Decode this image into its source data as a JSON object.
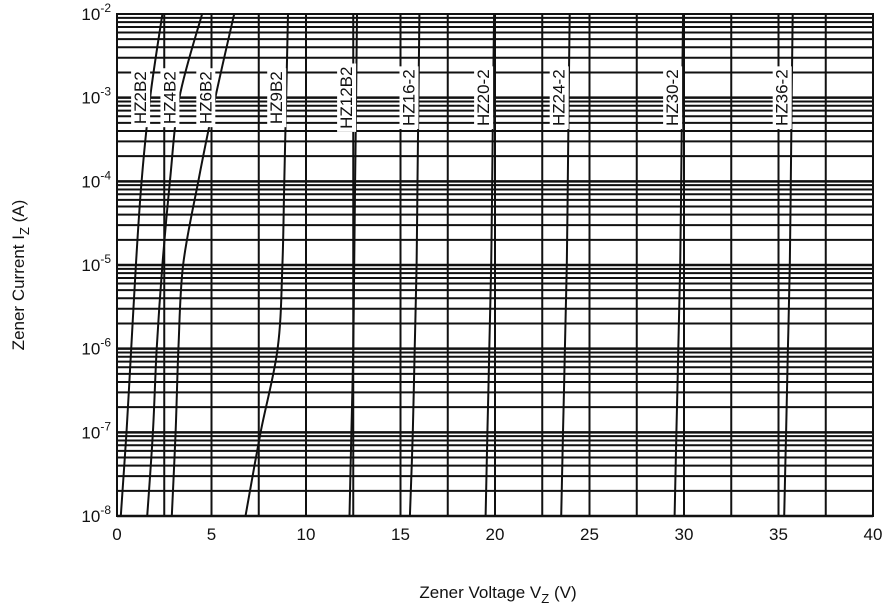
{
  "chart_data": {
    "type": "line",
    "title": "",
    "xlabel": "Zener Voltage V",
    "xlabel_sub": "Z",
    "xlabel_unit": "(V)",
    "ylabel": "Zener Current I",
    "ylabel_sub": "Z",
    "ylabel_unit": "(A)",
    "x_scale": "linear",
    "y_scale": "log",
    "xlim": [
      0,
      40
    ],
    "ylim": [
      1e-08,
      0.01
    ],
    "grid": true,
    "x_ticks": [
      0,
      5,
      10,
      15,
      20,
      25,
      30,
      35,
      40
    ],
    "x_tick_labels": [
      "0",
      "5",
      "10",
      "15",
      "20",
      "25",
      "30",
      "35",
      "40"
    ],
    "y_ticks": [
      1e-08,
      1e-07,
      1e-06,
      1e-05,
      0.0001,
      0.001,
      0.01
    ],
    "y_tick_labels": [
      {
        "base": "10",
        "exp": "-8"
      },
      {
        "base": "10",
        "exp": "-7"
      },
      {
        "base": "10",
        "exp": "-6"
      },
      {
        "base": "10",
        "exp": "-5"
      },
      {
        "base": "10",
        "exp": "-4"
      },
      {
        "base": "10",
        "exp": "-3"
      },
      {
        "base": "10",
        "exp": "-2"
      }
    ],
    "line_color": "#111111",
    "series": [
      {
        "name": "HZ2B2",
        "points": [
          [
            0.2,
            1e-08
          ],
          [
            0.5,
            1e-07
          ],
          [
            0.75,
            1e-06
          ],
          [
            1.0,
            1e-05
          ],
          [
            1.3,
            0.0001
          ],
          [
            1.75,
            0.001
          ],
          [
            2.4,
            0.01
          ]
        ]
      },
      {
        "name": "HZ4B2",
        "points": [
          [
            1.6,
            1e-08
          ],
          [
            1.9,
            1e-07
          ],
          [
            2.1,
            1e-06
          ],
          [
            2.4,
            1e-05
          ],
          [
            2.8,
            0.0001
          ],
          [
            3.3,
            0.001
          ],
          [
            4.5,
            0.01
          ]
        ]
      },
      {
        "name": "HZ6B2",
        "points": [
          [
            2.9,
            1e-08
          ],
          [
            3.1,
            1e-07
          ],
          [
            3.25,
            1e-06
          ],
          [
            3.5,
            1e-05
          ],
          [
            4.3,
            0.0001
          ],
          [
            5.2,
            0.001
          ],
          [
            6.2,
            0.01
          ]
        ]
      },
      {
        "name": "HZ9B2",
        "points": [
          [
            6.8,
            1e-08
          ],
          [
            7.6,
            1e-07
          ],
          [
            8.5,
            1e-06
          ],
          [
            8.75,
            1e-05
          ],
          [
            8.85,
            0.0001
          ],
          [
            8.95,
            0.001
          ],
          [
            9.05,
            0.01
          ]
        ]
      },
      {
        "name": "HZ12B2",
        "points": [
          [
            12.3,
            1e-08
          ],
          [
            12.4,
            1e-07
          ],
          [
            12.5,
            1e-06
          ],
          [
            12.55,
            1e-05
          ],
          [
            12.6,
            0.0001
          ],
          [
            12.65,
            0.001
          ],
          [
            12.7,
            0.01
          ]
        ]
      },
      {
        "name": "HZ16-2",
        "points": [
          [
            15.5,
            1e-08
          ],
          [
            15.65,
            1e-07
          ],
          [
            15.75,
            1e-06
          ],
          [
            15.85,
            1e-05
          ],
          [
            15.9,
            0.0001
          ],
          [
            15.95,
            0.001
          ],
          [
            16.0,
            0.01
          ]
        ]
      },
      {
        "name": "HZ20-2",
        "points": [
          [
            19.5,
            1e-08
          ],
          [
            19.6,
            1e-07
          ],
          [
            19.7,
            1e-06
          ],
          [
            19.8,
            1e-05
          ],
          [
            19.85,
            0.0001
          ],
          [
            19.9,
            0.001
          ],
          [
            19.95,
            0.01
          ]
        ]
      },
      {
        "name": "HZ24-2",
        "points": [
          [
            23.5,
            1e-08
          ],
          [
            23.6,
            1e-07
          ],
          [
            23.7,
            1e-06
          ],
          [
            23.8,
            1e-05
          ],
          [
            23.85,
            0.0001
          ],
          [
            23.9,
            0.001
          ],
          [
            23.95,
            0.01
          ]
        ]
      },
      {
        "name": "HZ30-2",
        "points": [
          [
            29.5,
            1e-08
          ],
          [
            29.6,
            1e-07
          ],
          [
            29.7,
            1e-06
          ],
          [
            29.8,
            1e-05
          ],
          [
            29.85,
            0.0001
          ],
          [
            29.9,
            0.001
          ],
          [
            29.95,
            0.01
          ]
        ]
      },
      {
        "name": "HZ36-2",
        "points": [
          [
            35.3,
            1e-08
          ],
          [
            35.4,
            1e-07
          ],
          [
            35.5,
            1e-06
          ],
          [
            35.6,
            1e-05
          ],
          [
            35.65,
            0.0001
          ],
          [
            35.7,
            0.001
          ],
          [
            35.75,
            0.01
          ]
        ]
      }
    ],
    "series_label_anchor_y": 0.001
  }
}
